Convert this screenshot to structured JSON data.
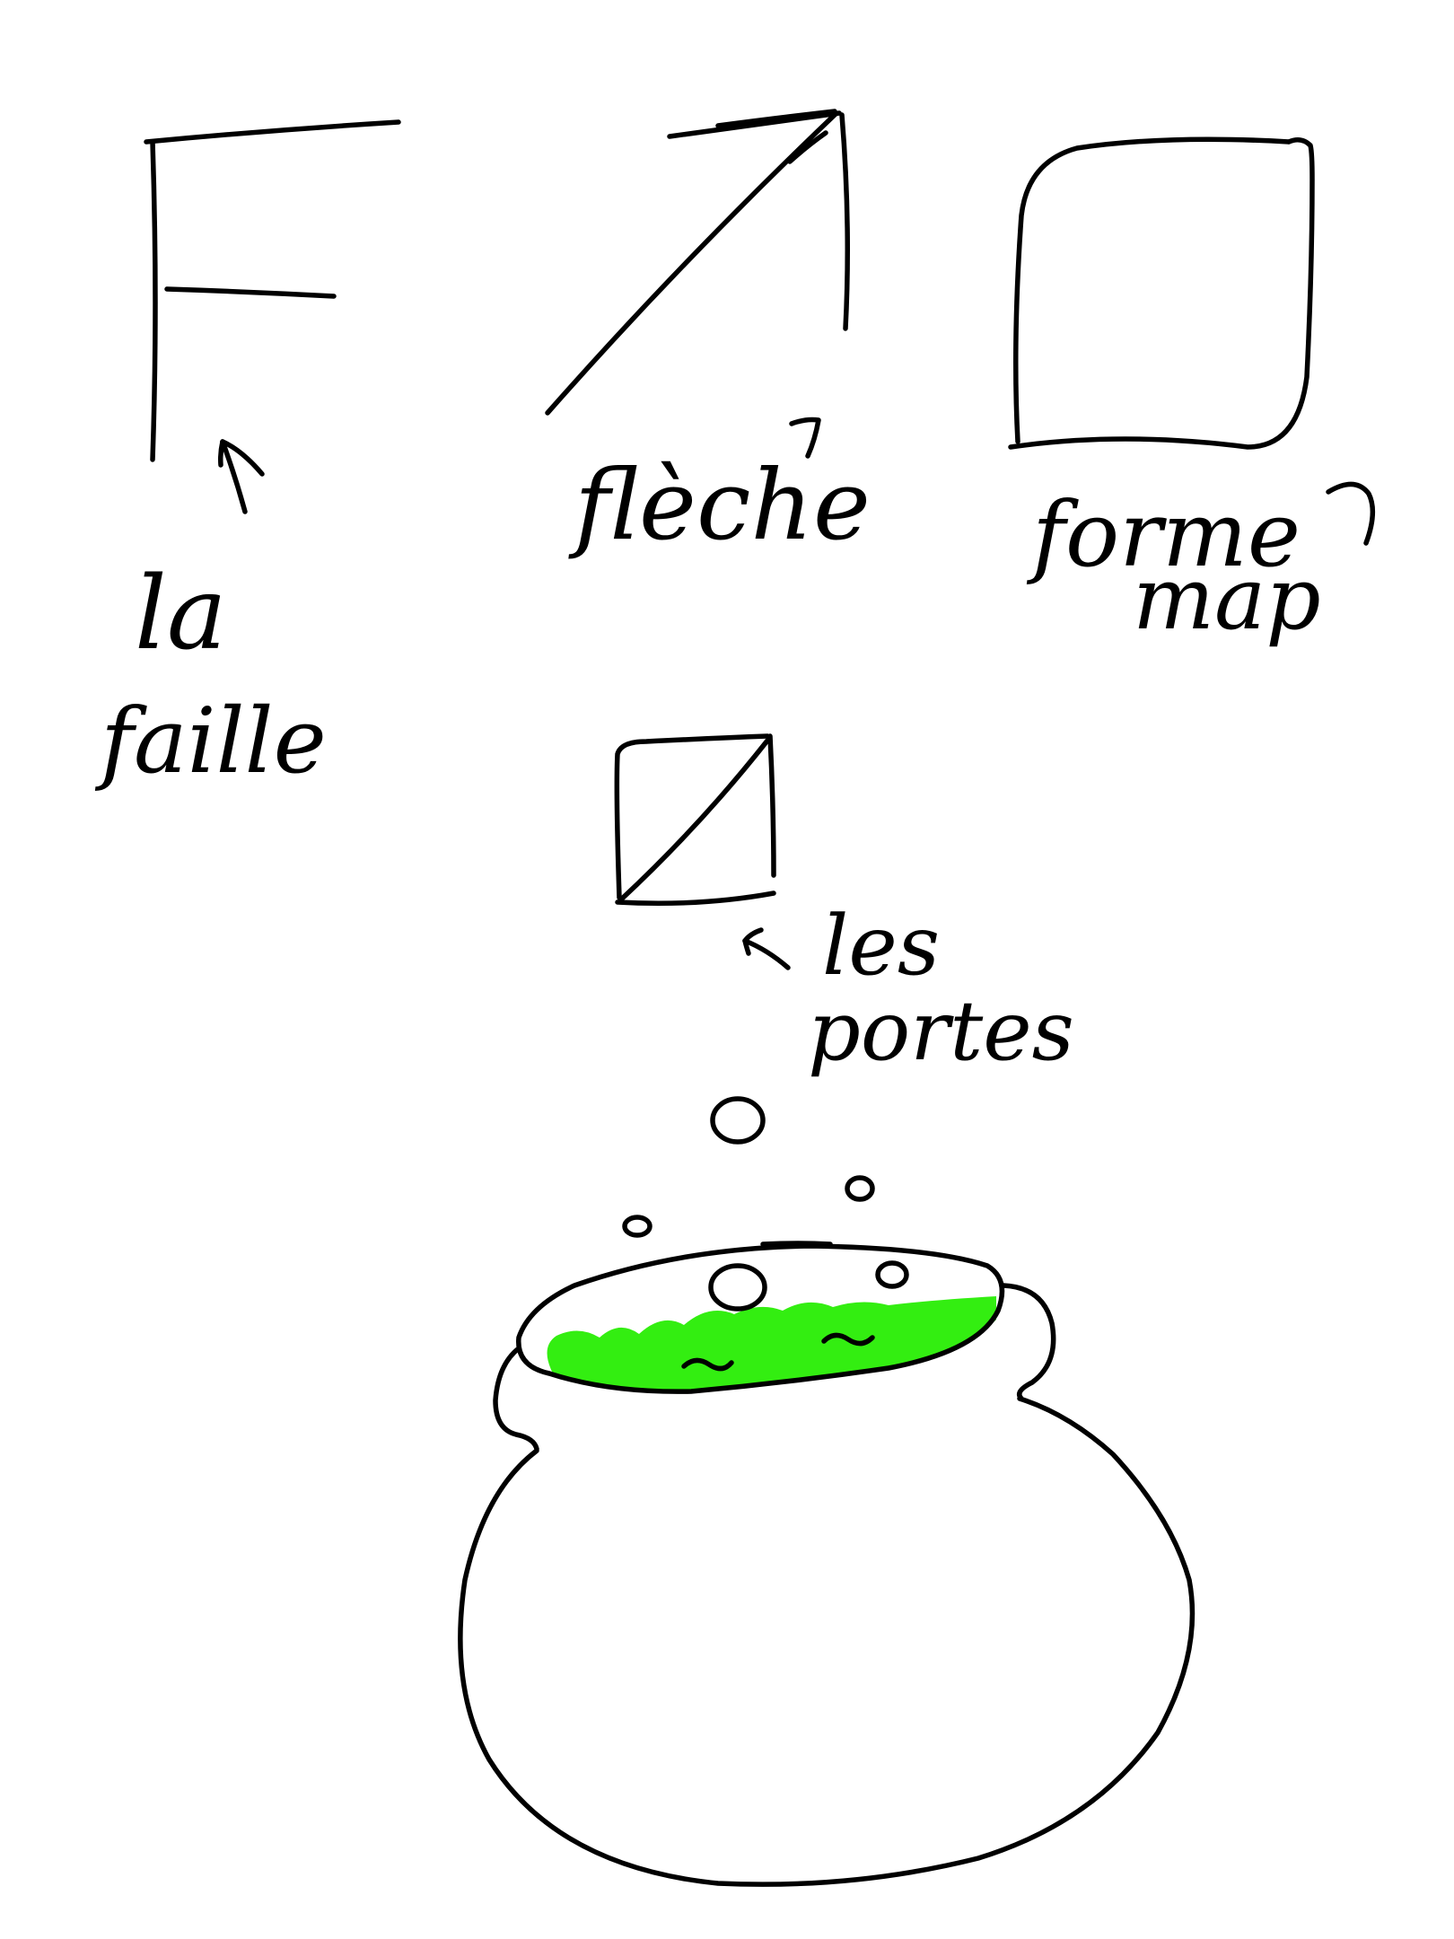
{
  "labels": {
    "faille_line1": "la",
    "faille_line2": "faille",
    "fleche": "flèche",
    "forme_line1": "forme",
    "forme_line2": "map",
    "portes_line1": "les",
    "portes_line2": "portes"
  },
  "colors": {
    "ink": "#000000",
    "potion": "#33ee11",
    "background": "#ffffff"
  },
  "icons": {
    "faille_symbol": "faille-symbol-icon",
    "fleche_symbol": "arrow-symbol-icon",
    "forme_symbol": "map-shape-icon",
    "portes_symbol": "door-symbol-icon",
    "cauldron": "cauldron-icon"
  }
}
